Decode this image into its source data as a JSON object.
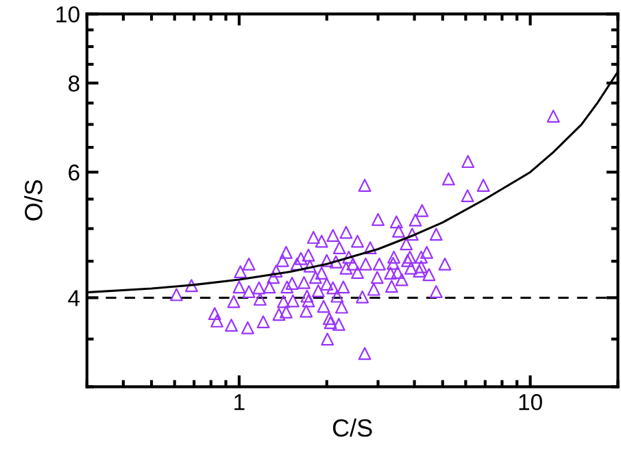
{
  "chart_data": {
    "type": "scatter",
    "xlabel": "C/S",
    "ylabel": "O/S",
    "log": "xy",
    "xlim": [
      0.3,
      20
    ],
    "ylim": [
      3,
      10
    ],
    "xticks": [
      1,
      10
    ],
    "yticks": [
      4,
      6,
      8,
      10
    ],
    "marker": "triangle",
    "grid": false,
    "legend": false,
    "ref_lines": [
      {
        "axis": "y",
        "value": 4,
        "color": "#000000",
        "line_style": "dashed"
      }
    ],
    "series": [
      {
        "color": "#9933ff",
        "x": [
          12.0,
          6.11,
          5.24,
          6.9,
          2.7,
          6.09,
          4.25,
          3.0,
          3.47,
          4.03,
          3.53,
          4.75,
          3.93,
          3.75,
          2.55,
          2.33,
          2.1,
          1.8,
          1.92,
          2.82,
          2.21,
          1.45,
          1.73,
          2.0,
          1.63,
          4.22,
          4.41,
          3.4,
          3.86,
          5.09,
          1.08,
          1.01,
          1.41,
          1.34,
          1.58,
          1.75,
          2.15,
          2.46,
          2.72,
          3.03,
          3.38,
          3.5,
          3.89,
          4.16,
          4.49,
          3.62,
          3.31,
          2.98,
          2.55,
          2.33,
          1.92,
          2.0,
          1.67,
          1.52,
          1.46,
          1.27,
          1.17,
          1.0,
          1.08,
          1.31,
          1.83,
          2.1,
          2.28,
          1.87,
          1.71,
          2.17,
          2.65,
          2.9,
          3.34,
          4.75,
          0.958,
          1.18,
          1.42,
          1.53,
          1.73,
          1.95,
          2.25,
          0.824,
          0.839,
          0.94,
          1.07,
          1.21,
          1.37,
          1.45,
          1.7,
          2.04,
          2.06,
          2.2,
          2.01,
          2.7,
          4.22,
          3.79,
          2.38,
          0.609,
          0.686
        ],
        "values": [
          7.19,
          6.21,
          5.87,
          5.75,
          5.75,
          5.56,
          5.3,
          5.15,
          5.11,
          5.14,
          4.96,
          4.91,
          4.91,
          4.76,
          4.8,
          4.94,
          4.89,
          4.86,
          4.8,
          4.7,
          4.7,
          4.63,
          4.59,
          4.51,
          4.54,
          4.56,
          4.63,
          4.56,
          4.56,
          4.46,
          4.46,
          4.35,
          4.51,
          4.36,
          4.46,
          4.43,
          4.49,
          4.46,
          4.46,
          4.46,
          4.47,
          4.34,
          4.4,
          4.36,
          4.31,
          4.24,
          4.33,
          4.27,
          4.34,
          4.4,
          4.33,
          4.18,
          4.2,
          4.19,
          4.14,
          4.14,
          4.13,
          4.14,
          4.08,
          4.27,
          4.27,
          4.13,
          4.14,
          4.09,
          4.02,
          4.02,
          4.01,
          4.11,
          4.15,
          4.08,
          3.95,
          3.98,
          3.95,
          3.96,
          3.96,
          3.89,
          3.88,
          3.8,
          3.71,
          3.66,
          3.63,
          3.7,
          3.79,
          3.82,
          3.83,
          3.74,
          3.69,
          3.67,
          3.5,
          3.34,
          4.42,
          4.51,
          4.56,
          4.04,
          4.16
        ]
      },
      {
        "type": "line",
        "color": "#000000",
        "marker": "none",
        "line_style": "solid",
        "x": [
          0.3,
          0.5,
          0.7,
          1,
          1.5,
          2,
          3,
          4,
          5,
          7,
          10,
          12,
          15,
          17,
          20
        ],
        "values": [
          4.07,
          4.12,
          4.17,
          4.24,
          4.35,
          4.46,
          4.68,
          4.9,
          5.1,
          5.5,
          6.0,
          6.4,
          7.0,
          7.5,
          8.3
        ]
      }
    ]
  }
}
